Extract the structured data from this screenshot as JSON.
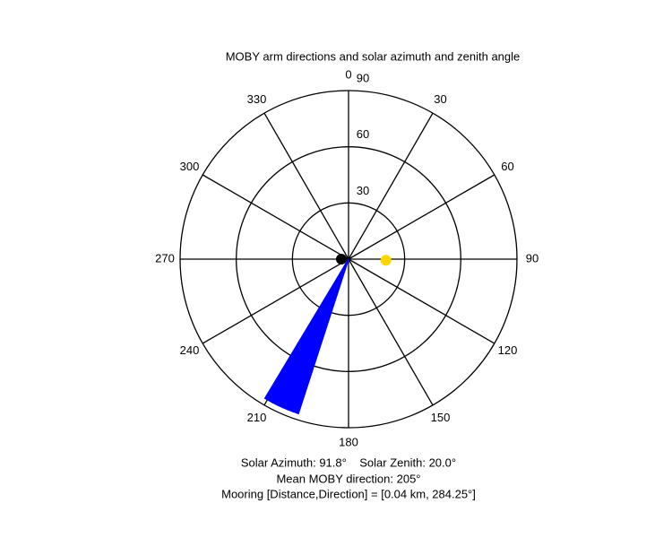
{
  "chart_data": {
    "type": "polar",
    "title": "MOBY arm directions and solar azimuth and zenith angle",
    "thetaticks": [
      0,
      30,
      60,
      90,
      120,
      150,
      180,
      210,
      240,
      270,
      300,
      330
    ],
    "rlim": [
      0,
      90
    ],
    "rticks": [
      30,
      60,
      90
    ],
    "arm_color": "#0000ff",
    "arm_directions": [
      198,
      200,
      202,
      204,
      206,
      208,
      210,
      211
    ],
    "arm_length": 87,
    "sun": {
      "azimuth": 91.8,
      "zenith": 20.0,
      "color": "#ffd700"
    },
    "annotations": [
      "Solar Azimuth: 91.8°    Solar Zenith: 20.0°",
      "Mean MOBY direction: 205°",
      "Mooring [Distance,Direction] = [0.04 km, 284.25°]"
    ]
  }
}
